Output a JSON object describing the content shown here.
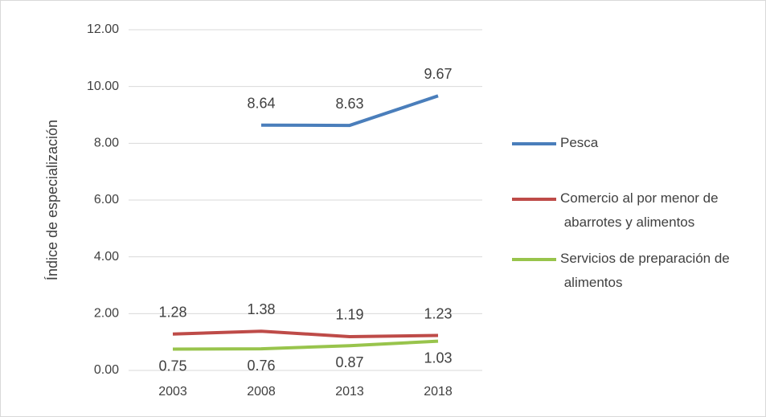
{
  "chart_data": {
    "type": "line",
    "ylabel": "Índice de especialización",
    "categories": [
      "2003",
      "2008",
      "2013",
      "2018"
    ],
    "series": [
      {
        "name": "Pesca",
        "color": "#4a7ebb",
        "values": [
          null,
          8.64,
          8.63,
          9.67
        ]
      },
      {
        "name": "Comercio al por menor de abarrotes y alimentos",
        "color": "#be4b48",
        "values": [
          1.28,
          1.38,
          1.19,
          1.23
        ]
      },
      {
        "name": "Servicios de preparación de alimentos",
        "color": "#98c44c",
        "values": [
          0.75,
          0.76,
          0.87,
          1.03
        ]
      }
    ],
    "ylim": [
      0,
      12
    ],
    "yticks": [
      {
        "value": 0,
        "label": "0.00"
      },
      {
        "value": 2,
        "label": "2.00"
      },
      {
        "value": 4,
        "label": "4.00"
      },
      {
        "value": 6,
        "label": "6.00"
      },
      {
        "value": 8,
        "label": "8.00"
      },
      {
        "value": 10,
        "label": "10.00"
      },
      {
        "value": 12,
        "label": "12.00"
      }
    ],
    "grid": true,
    "legend": "right"
  }
}
